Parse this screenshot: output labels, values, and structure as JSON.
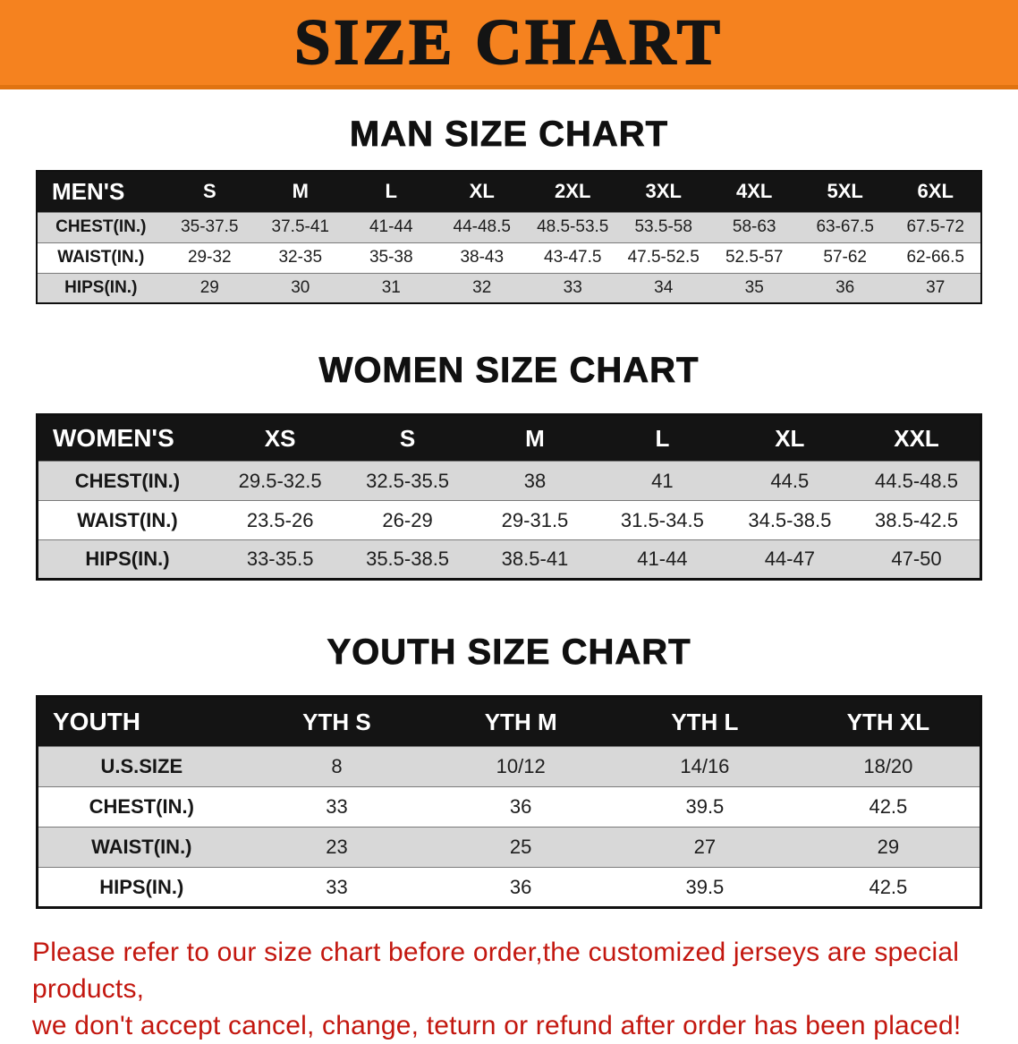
{
  "banner": {
    "title": "SIZE CHART"
  },
  "chart_data": [
    {
      "type": "table",
      "title": "MAN SIZE CHART",
      "columns": [
        "MEN'S",
        "S",
        "M",
        "L",
        "XL",
        "2XL",
        "3XL",
        "4XL",
        "5XL",
        "6XL"
      ],
      "rows": [
        {
          "label": "CHEST(IN.)",
          "values": [
            "35-37.5",
            "37.5-41",
            "41-44",
            "44-48.5",
            "48.5-53.5",
            "53.5-58",
            "58-63",
            "63-67.5",
            "67.5-72"
          ]
        },
        {
          "label": "WAIST(IN.)",
          "values": [
            "29-32",
            "32-35",
            "35-38",
            "38-43",
            "43-47.5",
            "47.5-52.5",
            "52.5-57",
            "57-62",
            "62-66.5"
          ]
        },
        {
          "label": "HIPS(IN.)",
          "values": [
            "29",
            "30",
            "31",
            "32",
            "33",
            "34",
            "35",
            "36",
            "37"
          ]
        }
      ]
    },
    {
      "type": "table",
      "title": "WOMEN SIZE CHART",
      "columns": [
        "WOMEN'S",
        "XS",
        "S",
        "M",
        "L",
        "XL",
        "XXL"
      ],
      "rows": [
        {
          "label": "CHEST(IN.)",
          "values": [
            "29.5-32.5",
            "32.5-35.5",
            "38",
            "41",
            "44.5",
            "44.5-48.5"
          ]
        },
        {
          "label": "WAIST(IN.)",
          "values": [
            "23.5-26",
            "26-29",
            "29-31.5",
            "31.5-34.5",
            "34.5-38.5",
            "38.5-42.5"
          ]
        },
        {
          "label": "HIPS(IN.)",
          "values": [
            "33-35.5",
            "35.5-38.5",
            "38.5-41",
            "41-44",
            "44-47",
            "47-50"
          ]
        }
      ]
    },
    {
      "type": "table",
      "title": "YOUTH SIZE CHART",
      "columns": [
        "YOUTH",
        "YTH S",
        "YTH M",
        "YTH L",
        "YTH XL"
      ],
      "rows": [
        {
          "label": "U.S.SIZE",
          "values": [
            "8",
            "10/12",
            "14/16",
            "18/20"
          ]
        },
        {
          "label": "CHEST(IN.)",
          "values": [
            "33",
            "36",
            "39.5",
            "42.5"
          ]
        },
        {
          "label": "WAIST(IN.)",
          "values": [
            "23",
            "25",
            "27",
            "29"
          ]
        },
        {
          "label": "HIPS(IN.)",
          "values": [
            "33",
            "36",
            "39.5",
            "42.5"
          ]
        }
      ]
    }
  ],
  "disclaimer": {
    "line1": "Please refer to our size chart before order,the customized jerseys are special products,",
    "line2": "we don't accept cancel, change, teturn or refund after order has been placed!"
  },
  "colors": {
    "banner-bg": "#f5821f",
    "banner-border": "#e07311",
    "header-bg": "#141414",
    "header-text": "#ffffff",
    "row-shaded": "#d8d8d8",
    "row-line": "#7a7a7a",
    "table-border": "#101010",
    "disclaimer": "#c3170f"
  }
}
